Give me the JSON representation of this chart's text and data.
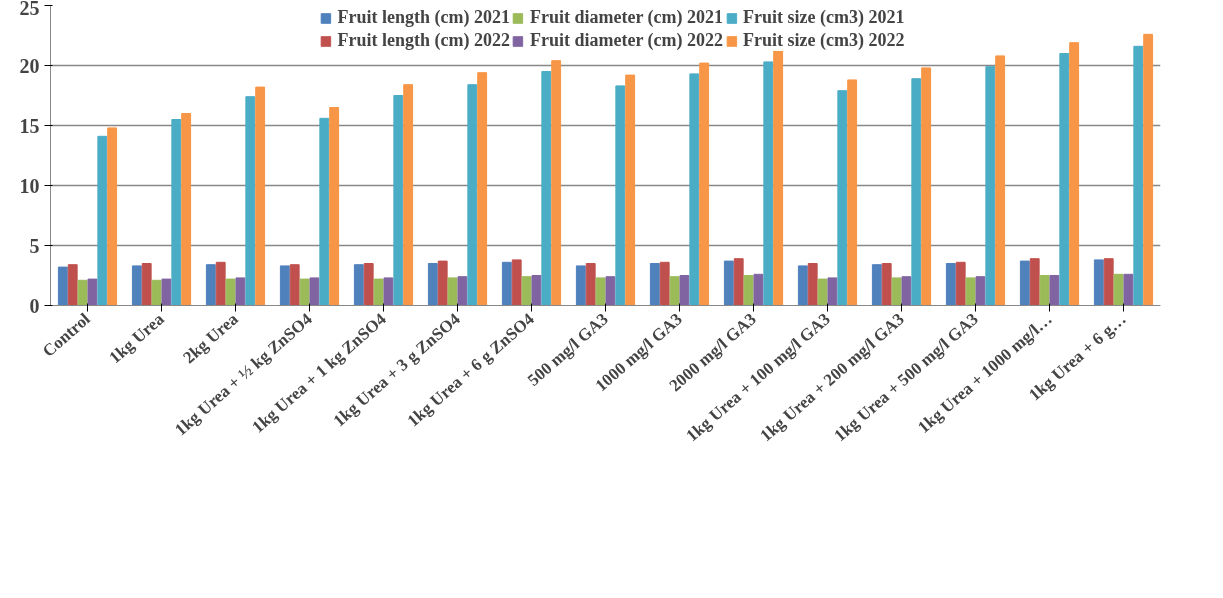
{
  "chart_data": {
    "type": "bar",
    "categories": [
      "Control",
      "1kg Urea",
      "2kg Urea",
      "1kg Urea + ½ kg ZnSO4",
      "1kg Urea + 1 kg ZnSO4",
      "1kg Urea + 3 g ZnSO4",
      "1kg Urea + 6 g ZnSO4",
      "500 mg/l GA3",
      "1000 mg/l GA3",
      "2000 mg/l GA3",
      "1kg Urea + 100 mg/l GA3",
      "1kg Urea + 200 mg/l GA3",
      "1kg Urea + 500 mg/l GA3",
      "1kg Urea + 1000 mg/l…",
      "1kg Urea + 6 g…"
    ],
    "series": [
      {
        "name": "Fruit length (cm) 2021",
        "color": "#4f81bd",
        "values": [
          3.2,
          3.3,
          3.4,
          3.3,
          3.4,
          3.5,
          3.6,
          3.3,
          3.5,
          3.7,
          3.3,
          3.4,
          3.5,
          3.7,
          3.8
        ]
      },
      {
        "name": "Fruit length (cm) 2022",
        "color": "#c0504d",
        "values": [
          3.4,
          3.5,
          3.6,
          3.4,
          3.5,
          3.7,
          3.8,
          3.5,
          3.6,
          3.9,
          3.5,
          3.5,
          3.6,
          3.9,
          3.9
        ]
      },
      {
        "name": "Fruit diameter (cm) 2021",
        "color": "#9bbb59",
        "values": [
          2.1,
          2.1,
          2.2,
          2.2,
          2.2,
          2.3,
          2.4,
          2.3,
          2.4,
          2.5,
          2.2,
          2.3,
          2.3,
          2.5,
          2.6
        ]
      },
      {
        "name": "Fruit diameter (cm) 2022",
        "color": "#8064a2",
        "values": [
          2.2,
          2.2,
          2.3,
          2.3,
          2.3,
          2.4,
          2.5,
          2.4,
          2.5,
          2.6,
          2.3,
          2.4,
          2.4,
          2.5,
          2.6
        ]
      },
      {
        "name": "Fruit size (cm3) 2021",
        "color": "#4bacc6",
        "values": [
          14.1,
          15.5,
          17.4,
          15.6,
          17.5,
          18.4,
          19.5,
          18.3,
          19.3,
          20.3,
          17.9,
          18.9,
          19.9,
          21.0,
          21.6
        ]
      },
      {
        "name": "Fruit size (cm3) 2022",
        "color": "#f79646",
        "values": [
          14.8,
          16.0,
          18.2,
          16.5,
          18.4,
          19.4,
          20.4,
          19.2,
          20.2,
          21.3,
          18.8,
          19.8,
          20.8,
          21.9,
          22.6
        ]
      }
    ],
    "ylim": [
      0,
      25
    ],
    "yticks": [
      0,
      5,
      10,
      15,
      20,
      25
    ],
    "grid": "y",
    "legend": "top"
  }
}
